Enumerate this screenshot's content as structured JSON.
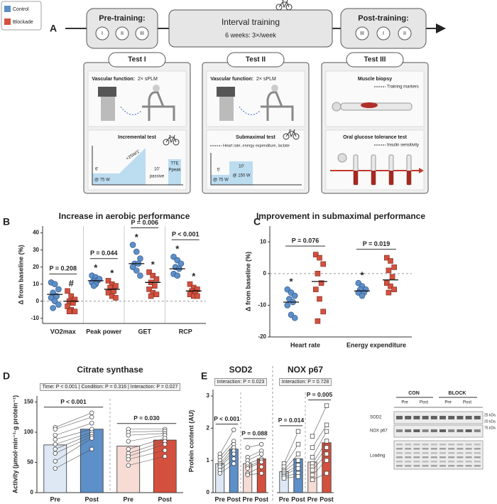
{
  "legend": {
    "items": [
      {
        "name": "Control",
        "color": "#5d8fc8"
      },
      {
        "name": "Blockade",
        "color": "#d4503e"
      }
    ]
  },
  "panel_a": {
    "label": "A",
    "pre": {
      "title": "Pre-training:",
      "tests": [
        "I",
        "II",
        "III"
      ]
    },
    "interval": {
      "title": "Interval training",
      "subtitle": "6 weeks: 3×/week"
    },
    "post": {
      "title": "Post-training:",
      "tests": [
        "III",
        "I",
        "II"
      ]
    },
    "tests": [
      {
        "title": "Test I",
        "top": {
          "title": "Vascular function:",
          "detail": "2× sPLM"
        },
        "bottom": {
          "title": "Incremental test",
          "labels": [
            "+25W/1'",
            "6'",
            "@ 75 W",
            "10'",
            "passive",
            "TTE",
            "Ppeak"
          ]
        }
      },
      {
        "title": "Test II",
        "top": {
          "title": "Vascular function:",
          "detail": "2× sPLM"
        },
        "bottom": {
          "title": "Submaximal test",
          "detail": "Heart rate, energy expenditure, lactate",
          "labels": [
            "5'",
            "@ 75 W",
            "10'",
            "@ 150 W"
          ]
        }
      },
      {
        "title": "Test III",
        "top": {
          "title": "Muscle biopsy",
          "detail": "Training markers"
        },
        "bottom": {
          "title": "Oral glucose tolerance test",
          "detail": "Insulin sensitivity"
        }
      }
    ]
  },
  "chart_data": [
    {
      "type": "dot",
      "panel": "B",
      "title": "Increase in aerobic performance",
      "ylabel": "Δ from baseline (%)",
      "categories": [
        "VO2max",
        "Peak power",
        "GET",
        "RCP"
      ],
      "ylim": [
        -13,
        44
      ],
      "yticks": [
        -10,
        0,
        10,
        20,
        30,
        40
      ],
      "zero_line": true,
      "separators": true,
      "p_labels": [
        "P = 0.208",
        "P = 0.044",
        "P = 0.006",
        "P < 0.001"
      ],
      "series": [
        {
          "name": "Control",
          "color": "#5d8fc8",
          "shape": "circle",
          "values": [
            [
              11,
              10,
              7,
              5,
              3,
              2,
              0,
              -2,
              -4
            ],
            [
              15,
              14,
              13,
              12,
              12,
              11,
              10,
              13,
              9
            ],
            [
              33,
              29,
              25,
              22,
              22,
              20,
              18,
              15
            ],
            [
              26,
              24,
              22,
              20,
              19,
              16,
              15
            ]
          ],
          "means": [
            4,
            12,
            22,
            19
          ],
          "symbols": [
            null,
            "*",
            "*",
            "*"
          ]
        },
        {
          "name": "Blockade",
          "color": "#d4503e",
          "shape": "square",
          "values": [
            [
              6,
              3,
              1,
              0,
              -1,
              -3,
              -5,
              -6,
              -6
            ],
            [
              12,
              10,
              9,
              8,
              6,
              5,
              3,
              2
            ],
            [
              17,
              15,
              13,
              11,
              9,
              7,
              5,
              4,
              3
            ],
            [
              10,
              8,
              7,
              6,
              5,
              4,
              3,
              3
            ]
          ],
          "means": [
            0,
            7,
            11,
            6
          ],
          "symbols": [
            "#",
            "*",
            "*",
            "*"
          ]
        }
      ]
    },
    {
      "type": "dot",
      "panel": "C",
      "title": "Improvement in submaximal performance",
      "ylabel": "Δ from baseline (%)",
      "categories": [
        "Heart rate",
        "Energy expenditure"
      ],
      "ylim": [
        -20,
        15
      ],
      "yticks": [
        -20,
        -10,
        0,
        10
      ],
      "zero_line": true,
      "separators": false,
      "p_labels": [
        "P = 0.076",
        "P = 0.019"
      ],
      "series": [
        {
          "name": "Control",
          "color": "#5d8fc8",
          "shape": "circle",
          "values": [
            [
              -5,
              -6,
              -7,
              -8,
              -9,
              -10,
              -13,
              -14
            ],
            [
              -3,
              -4,
              -5,
              -5,
              -6,
              -6,
              -7
            ]
          ],
          "means": [
            -9,
            -5.5
          ],
          "symbols": [
            "*",
            "*"
          ]
        },
        {
          "name": "Blockade",
          "color": "#d4503e",
          "shape": "square",
          "values": [
            [
              6,
              5,
              3,
              0,
              -3,
              -5,
              -8,
              -12,
              -15
            ],
            [
              5,
              4,
              2,
              1,
              -1,
              -3,
              -4,
              -5,
              -6
            ]
          ],
          "means": [
            -2.5,
            -2
          ]
        }
      ]
    },
    {
      "type": "paired_bar",
      "panel": "D",
      "title": "Citrate synthase",
      "ylabel": "Activity (µmol·min⁻¹·g protein⁻¹)",
      "stat_box": "Time: P < 0.001 | Condition: P = 0.316 | Interaction: P = 0.027",
      "categories": [
        "Pre",
        "Post"
      ],
      "ylim": [
        0,
        160
      ],
      "yticks": [
        0,
        50,
        100,
        150
      ],
      "marker": "circle",
      "series": [
        {
          "colors": [
            "#dde8f4",
            "#5d8fc8"
          ],
          "values": [
            79,
            105
          ],
          "points": [
            [
              108,
              105,
              95,
              88,
              80,
              72,
              65,
              52,
              40
            ],
            [
              132,
              125,
              115,
              105,
              100,
              97,
              93,
              90,
              72
            ]
          ],
          "p_label": "P < 0.001"
        },
        {
          "colors": [
            "#f7dcd6",
            "#d4503e"
          ],
          "values": [
            77,
            87
          ],
          "points": [
            [
              105,
              100,
              95,
              85,
              72,
              65,
              60,
              55,
              45
            ],
            [
              105,
              102,
              98,
              95,
              90,
              85,
              80,
              70,
              60
            ]
          ],
          "p_label": "P = 0.030"
        }
      ]
    },
    {
      "type": "paired_bar",
      "panel": "E",
      "title": "SOD2",
      "ylabel": "Protein content (AU)",
      "stat_box": "Interaction: P = 0.023",
      "categories": [
        "Pre",
        "Post"
      ],
      "ylim": [
        0,
        3.2
      ],
      "yticks": [
        0,
        1,
        2,
        3
      ],
      "marker": "circle",
      "series": [
        {
          "colors": [
            "#dde8f4",
            "#5d8fc8"
          ],
          "values": [
            0.9,
            1.35
          ],
          "points": [
            [
              1.2,
              1.1,
              1.0,
              0.9,
              0.85,
              0.8,
              0.7,
              0.6
            ],
            [
              1.95,
              1.6,
              1.5,
              1.4,
              1.3,
              1.2,
              1.05,
              0.9
            ]
          ],
          "p_label": "P < 0.001"
        },
        {
          "colors": [
            "#f7dcd6",
            "#d4503e"
          ],
          "values": [
            0.9,
            1.05
          ],
          "points": [
            [
              1.4,
              1.1,
              1.0,
              0.9,
              0.8,
              0.75,
              0.6,
              0.55
            ],
            [
              1.5,
              1.3,
              1.2,
              1.05,
              1.0,
              0.95,
              0.8,
              0.6
            ]
          ],
          "p_label": "P = 0.088"
        }
      ]
    },
    {
      "type": "paired_bar",
      "title": "NOX p67",
      "stat_box": "Interaction: P = 0.728",
      "categories": [
        "Pre",
        "Post"
      ],
      "ylim": [
        0,
        3.2
      ],
      "marker": "square",
      "series": [
        {
          "colors": [
            "#dde8f4",
            "#5d8fc8"
          ],
          "values": [
            0.65,
            1.05
          ],
          "points": [
            [
              0.9,
              0.8,
              0.7,
              0.65,
              0.6,
              0.55,
              0.5,
              0.45
            ],
            [
              1.9,
              1.5,
              1.2,
              1.0,
              0.85,
              0.75,
              0.6,
              0.5
            ]
          ],
          "p_label": "P = 0.014"
        },
        {
          "colors": [
            "#f7dcd6",
            "#d4503e"
          ],
          "values": [
            0.95,
            1.55
          ],
          "points": [
            [
              1.75,
              1.4,
              1.1,
              0.9,
              0.8,
              0.7,
              0.55,
              0.4
            ],
            [
              2.7,
              2.1,
              1.9,
              1.6,
              1.4,
              1.2,
              1.0,
              0.6
            ]
          ],
          "p_label": "P = 0.005"
        }
      ]
    }
  ],
  "blot": {
    "groups": [
      "CON",
      "BLOCK"
    ],
    "lanes": [
      "Pre",
      "Post",
      "Pre",
      "Post"
    ],
    "rows": [
      "SOD2",
      "NOX p67",
      "Loading"
    ],
    "markers": [
      "25 kDa",
      "20 kDa",
      "75 kDa"
    ]
  }
}
